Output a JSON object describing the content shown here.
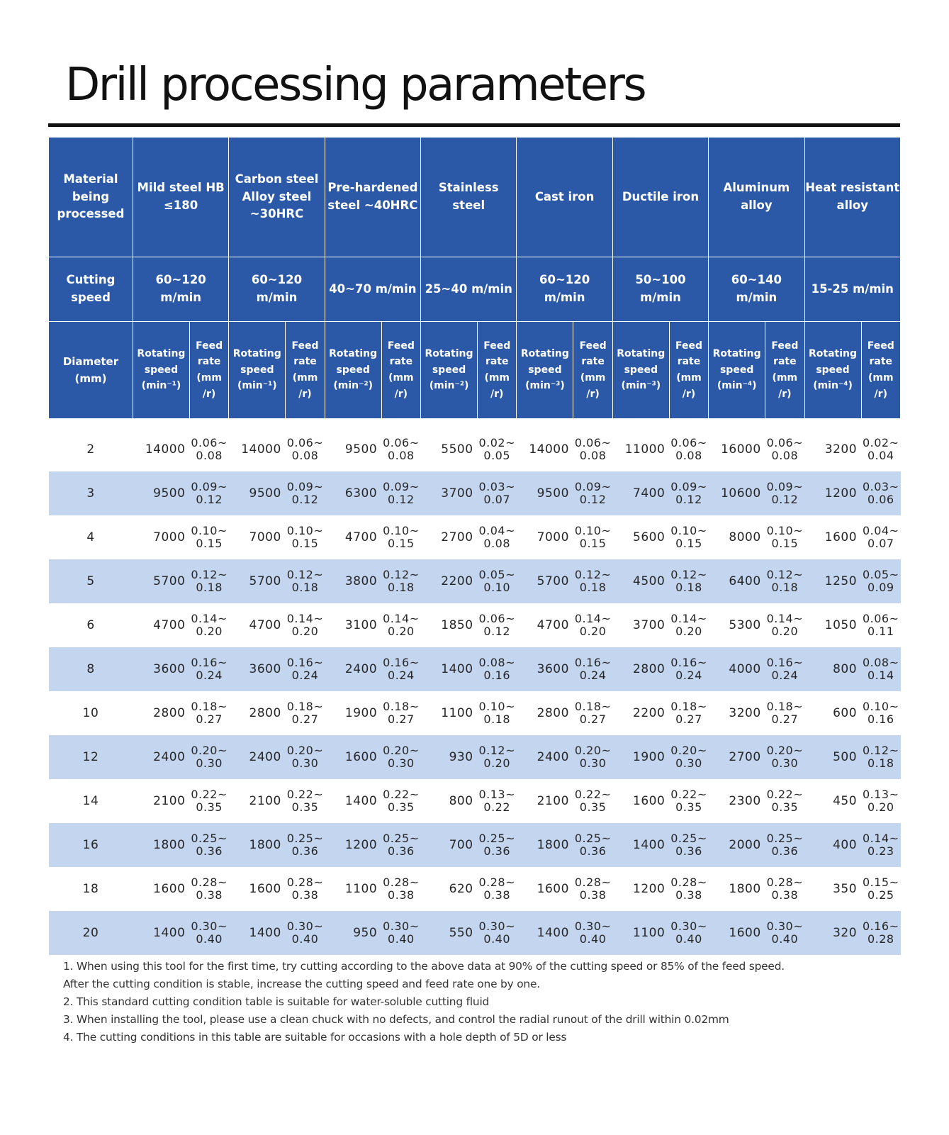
{
  "title": "Drill processing parameters",
  "table": {
    "material_header": "Material being processed",
    "materials": [
      "Mild steel HB ≤180",
      "Carbon steel Alloy steel ~30HRC",
      "Pre-hardened steel ~40HRC",
      "Stainless steel",
      "Cast iron",
      "Ductile iron",
      "Aluminum alloy",
      "Heat resistant alloy"
    ],
    "cutting_speed_label": "Cutting speed",
    "cutting_speeds": [
      "60~120 m/min",
      "60~120 m/min",
      "40~70 m/min",
      "25~40 m/min",
      "60~120 m/min",
      "50~100 m/min",
      "60~140 m/min",
      "15-25 m/min"
    ],
    "diameter_label": "Diameter (mm)",
    "rotating_speed_labels": [
      "Rotating speed (min⁻¹)",
      "Rotating speed (min⁻¹)",
      "Rotating speed (min⁻²)",
      "Rotating speed (min⁻²)",
      "Rotating speed (min⁻³)",
      "Rotating speed (min⁻³)",
      "Rotating speed (min⁻⁴)",
      "Rotating speed (min⁻⁴)"
    ],
    "feed_rate_label": "Feed rate (mm /r)",
    "rows": [
      {
        "d": "2",
        "cells": [
          [
            "14000",
            "0.06~",
            "0.08"
          ],
          [
            "14000",
            "0.06~",
            "0.08"
          ],
          [
            "9500",
            "0.06~",
            "0.08"
          ],
          [
            "5500",
            "0.02~",
            "0.05"
          ],
          [
            "14000",
            "0.06~",
            "0.08"
          ],
          [
            "11000",
            "0.06~",
            "0.08"
          ],
          [
            "16000",
            "0.06~",
            "0.08"
          ],
          [
            "3200",
            "0.02~",
            "0.04"
          ]
        ]
      },
      {
        "d": "3",
        "cells": [
          [
            "9500",
            "0.09~",
            "0.12"
          ],
          [
            "9500",
            "0.09~",
            "0.12"
          ],
          [
            "6300",
            "0.09~",
            "0.12"
          ],
          [
            "3700",
            "0.03~",
            "0.07"
          ],
          [
            "9500",
            "0.09~",
            "0.12"
          ],
          [
            "7400",
            "0.09~",
            "0.12"
          ],
          [
            "10600",
            "0.09~",
            "0.12"
          ],
          [
            "1200",
            "0.03~",
            "0.06"
          ]
        ]
      },
      {
        "d": "4",
        "cells": [
          [
            "7000",
            "0.10~",
            "0.15"
          ],
          [
            "7000",
            "0.10~",
            "0.15"
          ],
          [
            "4700",
            "0.10~",
            "0.15"
          ],
          [
            "2700",
            "0.04~",
            "0.08"
          ],
          [
            "7000",
            "0.10~",
            "0.15"
          ],
          [
            "5600",
            "0.10~",
            "0.15"
          ],
          [
            "8000",
            "0.10~",
            "0.15"
          ],
          [
            "1600",
            "0.04~",
            "0.07"
          ]
        ]
      },
      {
        "d": "5",
        "cells": [
          [
            "5700",
            "0.12~",
            "0.18"
          ],
          [
            "5700",
            "0.12~",
            "0.18"
          ],
          [
            "3800",
            "0.12~",
            "0.18"
          ],
          [
            "2200",
            "0.05~",
            "0.10"
          ],
          [
            "5700",
            "0.12~",
            "0.18"
          ],
          [
            "4500",
            "0.12~",
            "0.18"
          ],
          [
            "6400",
            "0.12~",
            "0.18"
          ],
          [
            "1250",
            "0.05~",
            "0.09"
          ]
        ]
      },
      {
        "d": "6",
        "cells": [
          [
            "4700",
            "0.14~",
            "0.20"
          ],
          [
            "4700",
            "0.14~",
            "0.20"
          ],
          [
            "3100",
            "0.14~",
            "0.20"
          ],
          [
            "1850",
            "0.06~",
            "0.12"
          ],
          [
            "4700",
            "0.14~",
            "0.20"
          ],
          [
            "3700",
            "0.14~",
            "0.20"
          ],
          [
            "5300",
            "0.14~",
            "0.20"
          ],
          [
            "1050",
            "0.06~",
            "0.11"
          ]
        ]
      },
      {
        "d": "8",
        "cells": [
          [
            "3600",
            "0.16~",
            "0.24"
          ],
          [
            "3600",
            "0.16~",
            "0.24"
          ],
          [
            "2400",
            "0.16~",
            "0.24"
          ],
          [
            "1400",
            "0.08~",
            "0.16"
          ],
          [
            "3600",
            "0.16~",
            "0.24"
          ],
          [
            "2800",
            "0.16~",
            "0.24"
          ],
          [
            "4000",
            "0.16~",
            "0.24"
          ],
          [
            "800",
            "0.08~",
            "0.14"
          ]
        ]
      },
      {
        "d": "10",
        "cells": [
          [
            "2800",
            "0.18~",
            "0.27"
          ],
          [
            "2800",
            "0.18~",
            "0.27"
          ],
          [
            "1900",
            "0.18~",
            "0.27"
          ],
          [
            "1100",
            "0.10~",
            "0.18"
          ],
          [
            "2800",
            "0.18~",
            "0.27"
          ],
          [
            "2200",
            "0.18~",
            "0.27"
          ],
          [
            "3200",
            "0.18~",
            "0.27"
          ],
          [
            "600",
            "0.10~",
            "0.16"
          ]
        ]
      },
      {
        "d": "12",
        "cells": [
          [
            "2400",
            "0.20~",
            "0.30"
          ],
          [
            "2400",
            "0.20~",
            "0.30"
          ],
          [
            "1600",
            "0.20~",
            "0.30"
          ],
          [
            "930",
            "0.12~",
            "0.20"
          ],
          [
            "2400",
            "0.20~",
            "0.30"
          ],
          [
            "1900",
            "0.20~",
            "0.30"
          ],
          [
            "2700",
            "0.20~",
            "0.30"
          ],
          [
            "500",
            "0.12~",
            "0.18"
          ]
        ]
      },
      {
        "d": "14",
        "cells": [
          [
            "2100",
            "0.22~",
            "0.35"
          ],
          [
            "2100",
            "0.22~",
            "0.35"
          ],
          [
            "1400",
            "0.22~",
            "0.35"
          ],
          [
            "800",
            "0.13~",
            "0.22"
          ],
          [
            "2100",
            "0.22~",
            "0.35"
          ],
          [
            "1600",
            "0.22~",
            "0.35"
          ],
          [
            "2300",
            "0.22~",
            "0.35"
          ],
          [
            "450",
            "0.13~",
            "0.20"
          ]
        ]
      },
      {
        "d": "16",
        "cells": [
          [
            "1800",
            "0.25~",
            "0.36"
          ],
          [
            "1800",
            "0.25~",
            "0.36"
          ],
          [
            "1200",
            "0.25~",
            "0.36"
          ],
          [
            "700",
            "0.25~",
            "0.36"
          ],
          [
            "1800",
            "0.25~",
            "0.36"
          ],
          [
            "1400",
            "0.25~",
            "0.36"
          ],
          [
            "2000",
            "0.25~",
            "0.36"
          ],
          [
            "400",
            "0.14~",
            "0.23"
          ]
        ]
      },
      {
        "d": "18",
        "cells": [
          [
            "1600",
            "0.28~",
            "0.38"
          ],
          [
            "1600",
            "0.28~",
            "0.38"
          ],
          [
            "1100",
            "0.28~",
            "0.38"
          ],
          [
            "620",
            "0.28~",
            "0.38"
          ],
          [
            "1600",
            "0.28~",
            "0.38"
          ],
          [
            "1200",
            "0.28~",
            "0.38"
          ],
          [
            "1800",
            "0.28~",
            "0.38"
          ],
          [
            "350",
            "0.15~",
            "0.25"
          ]
        ]
      },
      {
        "d": "20",
        "cells": [
          [
            "1400",
            "0.30~",
            "0.40"
          ],
          [
            "1400",
            "0.30~",
            "0.40"
          ],
          [
            "950",
            "0.30~",
            "0.40"
          ],
          [
            "550",
            "0.30~",
            "0.40"
          ],
          [
            "1400",
            "0.30~",
            "0.40"
          ],
          [
            "1100",
            "0.30~",
            "0.40"
          ],
          [
            "1600",
            "0.30~",
            "0.40"
          ],
          [
            "320",
            "0.16~",
            "0.28"
          ]
        ]
      }
    ]
  },
  "notes": [
    "1. When using this tool for the first time, try cutting according to the above data at 90% of the cutting speed or 85% of the feed speed.\n    After the cutting condition is stable, increase the cutting speed and feed rate one by one.",
    "2. This standard cutting condition table is suitable for water-soluble cutting fluid",
    "3. When installing the tool, please use a clean chuck with no defects, and control the radial runout of the drill within 0.02mm",
    "4. The cutting conditions in this table are suitable for occasions with a hole depth of 5D or less"
  ],
  "colors": {
    "header_bg": "#2b58a7",
    "header_text": "#ffffff",
    "row_alt_bg": "#c3d5ef",
    "title_rule": "#111111"
  }
}
